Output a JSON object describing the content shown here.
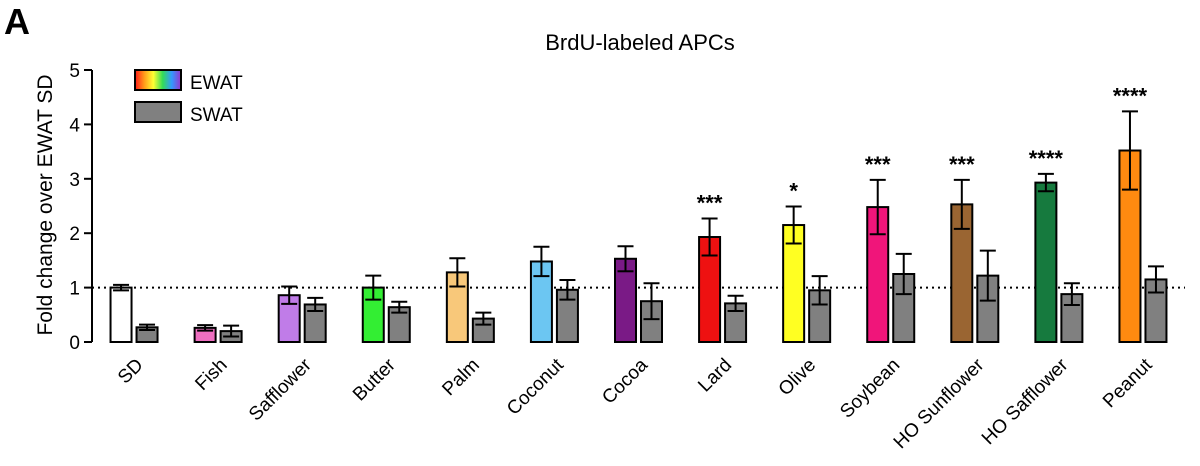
{
  "panel_label": "A",
  "chart_data": {
    "type": "bar",
    "title": "BrdU-labeled APCs",
    "xlabel": "",
    "ylabel": "Fold change over EWAT SD",
    "ylim": [
      0,
      5
    ],
    "yticks": [
      0,
      1,
      2,
      3,
      4,
      5
    ],
    "reference_line": 1,
    "legend_position": "top-left",
    "categories": [
      "SD",
      "Fish",
      "Safflower",
      "Butter",
      "Palm",
      "Coconut",
      "Cocoa",
      "Lard",
      "Olive",
      "Soybean",
      "HO Sunflower",
      "HO Safflower",
      "Peanut"
    ],
    "series": [
      {
        "name": "EWAT",
        "values": [
          1.0,
          0.26,
          0.86,
          1.0,
          1.28,
          1.48,
          1.53,
          1.93,
          2.15,
          2.48,
          2.53,
          2.93,
          3.52
        ],
        "errors": [
          0.05,
          0.05,
          0.16,
          0.22,
          0.26,
          0.27,
          0.23,
          0.34,
          0.34,
          0.5,
          0.45,
          0.16,
          0.72
        ],
        "colors": [
          "#ffffff",
          "#ee6fc0",
          "#c07ce8",
          "#33ee33",
          "#f8c87a",
          "#6cc6f2",
          "#7a1a86",
          "#ee1111",
          "#ffff22",
          "#f0157a",
          "#9a6532",
          "#167a3e",
          "#ff8a10"
        ]
      },
      {
        "name": "SWAT",
        "values": [
          0.27,
          0.2,
          0.69,
          0.64,
          0.43,
          0.96,
          0.75,
          0.71,
          0.95,
          1.25,
          1.22,
          0.88,
          1.15
        ],
        "errors": [
          0.05,
          0.1,
          0.12,
          0.1,
          0.11,
          0.18,
          0.33,
          0.14,
          0.26,
          0.37,
          0.46,
          0.2,
          0.24
        ],
        "colors": [
          "#808080",
          "#808080",
          "#808080",
          "#808080",
          "#808080",
          "#808080",
          "#808080",
          "#808080",
          "#808080",
          "#808080",
          "#808080",
          "#808080",
          "#808080"
        ]
      }
    ],
    "significance": [
      "",
      "",
      "",
      "",
      "",
      "",
      "",
      "***",
      "*",
      "***",
      "***",
      "****",
      "****"
    ]
  }
}
